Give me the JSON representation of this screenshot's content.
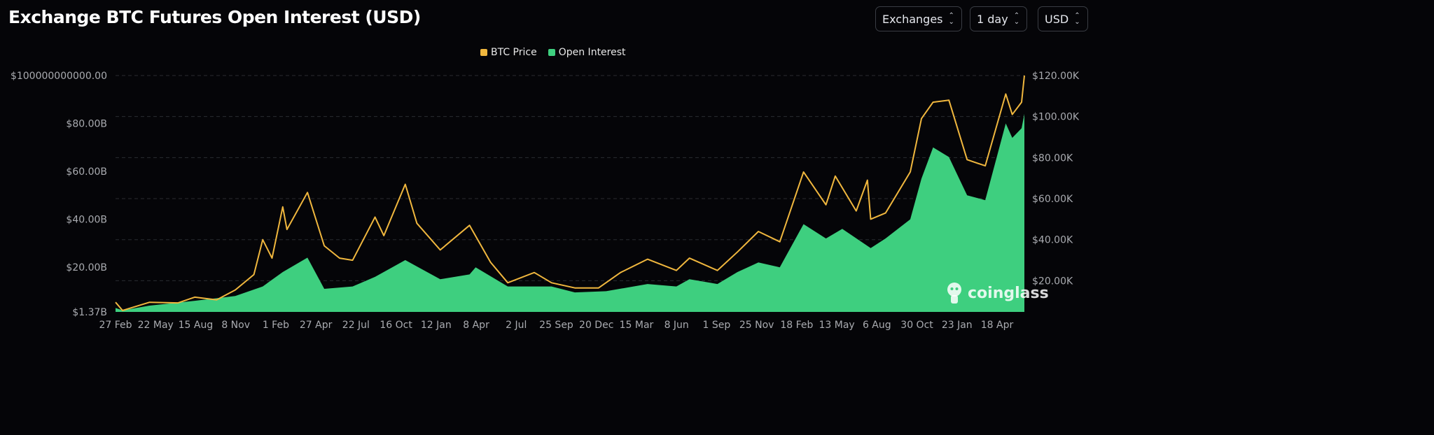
{
  "header": {
    "title": "Exchange BTC Futures Open Interest (USD)",
    "selects": [
      {
        "label": "Exchanges",
        "icon": "chevron-up-down-icon"
      },
      {
        "label": "1 day",
        "icon": "chevron-up-down-icon"
      },
      {
        "label": "USD",
        "icon": "chevron-up-down-icon"
      }
    ]
  },
  "watermark": "coinglass",
  "chart_data": {
    "type": "line",
    "title": "Exchange BTC Futures Open Interest (USD)",
    "legend_placement": "top-center",
    "grid": "horizontal-dashed",
    "colors": {
      "BTC Price": "#f0b73e",
      "Open Interest": "#3ecf7f",
      "background": "#050508"
    },
    "x_tick_labels": [
      "27 Feb",
      "22 May",
      "15 Aug",
      "8 Nov",
      "1 Feb",
      "27 Apr",
      "22 Jul",
      "16 Oct",
      "12 Jan",
      "8 Apr",
      "2 Jul",
      "25 Sep",
      "20 Dec",
      "15 Mar",
      "8 Jun",
      "1 Sep",
      "25 Nov",
      "18 Feb",
      "13 May",
      "6 Aug",
      "30 Oct",
      "23 Jan",
      "18 Apr"
    ],
    "x_range": [
      "2020-02-27",
      "2025-07-01"
    ],
    "y_left": {
      "ticks": [
        "$1.37B",
        "$20.00B",
        "$40.00B",
        "$60.00B",
        "$80.00B",
        "$100000000000.00"
      ],
      "tick_values": [
        1.37,
        20,
        40,
        60,
        80,
        100
      ],
      "unit": "USD billions",
      "range": [
        1.37,
        100
      ]
    },
    "y_right": {
      "ticks": [
        "$20.00K",
        "$40.00K",
        "$60.00K",
        "$80.00K",
        "$100.00K",
        "$120.00K"
      ],
      "tick_values": [
        20,
        40,
        60,
        80,
        100,
        120
      ],
      "unit": "USD thousands",
      "range": [
        4.8,
        120
      ]
    },
    "series": [
      {
        "name": "BTC Price",
        "axis": "right",
        "style": "line",
        "points": [
          [
            "2020-02-27",
            9.5
          ],
          [
            "2020-03-13",
            5.5
          ],
          [
            "2020-05-10",
            9.5
          ],
          [
            "2020-07-10",
            9.2
          ],
          [
            "2020-08-15",
            12
          ],
          [
            "2020-10-01",
            10.7
          ],
          [
            "2020-11-10",
            15.5
          ],
          [
            "2020-12-20",
            23
          ],
          [
            "2021-01-08",
            40
          ],
          [
            "2021-01-28",
            31
          ],
          [
            "2021-02-20",
            56
          ],
          [
            "2021-03-01",
            45
          ],
          [
            "2021-04-14",
            63
          ],
          [
            "2021-05-20",
            37
          ],
          [
            "2021-06-22",
            31
          ],
          [
            "2021-07-20",
            30
          ],
          [
            "2021-09-06",
            51
          ],
          [
            "2021-09-25",
            42
          ],
          [
            "2021-11-10",
            67
          ],
          [
            "2021-12-05",
            48
          ],
          [
            "2022-01-24",
            35
          ],
          [
            "2022-03-28",
            47
          ],
          [
            "2022-05-12",
            29
          ],
          [
            "2022-06-18",
            19
          ],
          [
            "2022-08-14",
            24
          ],
          [
            "2022-09-20",
            19
          ],
          [
            "2022-11-09",
            16.5
          ],
          [
            "2022-12-30",
            16.5
          ],
          [
            "2023-02-15",
            24
          ],
          [
            "2023-04-14",
            30.5
          ],
          [
            "2023-06-15",
            25
          ],
          [
            "2023-07-13",
            31
          ],
          [
            "2023-09-11",
            25
          ],
          [
            "2023-10-24",
            34
          ],
          [
            "2023-12-08",
            44
          ],
          [
            "2024-01-23",
            39
          ],
          [
            "2024-03-14",
            73
          ],
          [
            "2024-05-01",
            57
          ],
          [
            "2024-05-21",
            71
          ],
          [
            "2024-07-05",
            54
          ],
          [
            "2024-07-29",
            69
          ],
          [
            "2024-08-05",
            50
          ],
          [
            "2024-09-06",
            53
          ],
          [
            "2024-10-29",
            73
          ],
          [
            "2024-11-22",
            99
          ],
          [
            "2024-12-17",
            107
          ],
          [
            "2025-01-20",
            108
          ],
          [
            "2025-02-28",
            79
          ],
          [
            "2025-04-08",
            76
          ],
          [
            "2025-05-22",
            111
          ],
          [
            "2025-06-05",
            101
          ],
          [
            "2025-06-25",
            107
          ],
          [
            "2025-07-01",
            120
          ]
        ]
      },
      {
        "name": "Open Interest",
        "axis": "left",
        "style": "area",
        "points": [
          [
            "2020-02-27",
            3
          ],
          [
            "2020-03-13",
            2
          ],
          [
            "2020-05-10",
            4
          ],
          [
            "2020-08-15",
            6
          ],
          [
            "2020-11-10",
            8
          ],
          [
            "2021-01-08",
            12
          ],
          [
            "2021-02-20",
            18
          ],
          [
            "2021-04-14",
            24
          ],
          [
            "2021-05-20",
            11
          ],
          [
            "2021-07-20",
            12
          ],
          [
            "2021-09-06",
            16
          ],
          [
            "2021-11-10",
            23
          ],
          [
            "2022-01-24",
            15
          ],
          [
            "2022-03-28",
            17
          ],
          [
            "2022-04-10",
            20
          ],
          [
            "2022-06-18",
            12
          ],
          [
            "2022-09-20",
            12
          ],
          [
            "2022-11-09",
            9.5
          ],
          [
            "2023-01-15",
            10
          ],
          [
            "2023-04-14",
            13
          ],
          [
            "2023-06-15",
            12
          ],
          [
            "2023-07-13",
            15
          ],
          [
            "2023-09-11",
            13
          ],
          [
            "2023-10-24",
            18
          ],
          [
            "2023-12-08",
            22
          ],
          [
            "2024-01-23",
            20
          ],
          [
            "2024-03-14",
            38
          ],
          [
            "2024-05-01",
            32
          ],
          [
            "2024-06-05",
            36
          ],
          [
            "2024-08-05",
            28
          ],
          [
            "2024-09-06",
            32
          ],
          [
            "2024-10-29",
            40
          ],
          [
            "2024-11-22",
            57
          ],
          [
            "2024-12-17",
            70
          ],
          [
            "2025-01-20",
            66
          ],
          [
            "2025-02-28",
            50
          ],
          [
            "2025-04-08",
            48
          ],
          [
            "2025-05-22",
            80
          ],
          [
            "2025-06-05",
            74
          ],
          [
            "2025-06-25",
            78
          ],
          [
            "2025-07-01",
            84
          ]
        ]
      }
    ]
  }
}
